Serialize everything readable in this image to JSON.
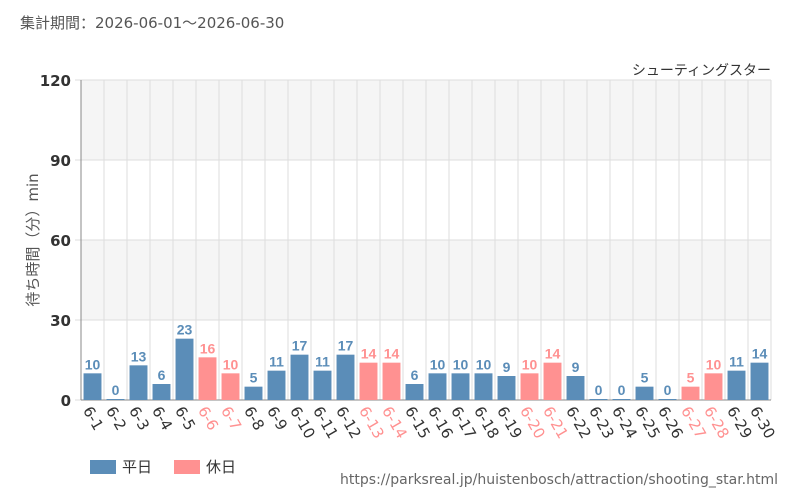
{
  "header": {
    "period": "集計期間：2026-06-01～2026-06-30"
  },
  "source_url": "https://parksreal.jp/huistenbosch/attraction/shooting_star.html",
  "colors": {
    "weekday": "#5b8db8",
    "holiday": "#ff9191",
    "band": "#f5f5f5",
    "grid": "#dddddd",
    "axis_text": "#333333"
  },
  "chart_data": {
    "type": "bar",
    "title": "シューティングスター",
    "ylabel": "待ち時間（分）min",
    "xlabel": "",
    "ylim": [
      0,
      120
    ],
    "yticks": [
      0,
      30,
      60,
      90,
      120
    ],
    "categories": [
      "6-1",
      "6-2",
      "6-3",
      "6-4",
      "6-5",
      "6-6",
      "6-7",
      "6-8",
      "6-9",
      "6-10",
      "6-11",
      "6-12",
      "6-13",
      "6-14",
      "6-15",
      "6-16",
      "6-17",
      "6-18",
      "6-19",
      "6-20",
      "6-21",
      "6-22",
      "6-23",
      "6-24",
      "6-25",
      "6-26",
      "6-27",
      "6-28",
      "6-29",
      "6-30"
    ],
    "values": [
      10,
      0,
      13,
      6,
      23,
      16,
      10,
      5,
      11,
      17,
      11,
      17,
      14,
      14,
      6,
      10,
      10,
      10,
      9,
      10,
      14,
      9,
      0,
      0,
      5,
      0,
      5,
      10,
      11,
      14
    ],
    "day_type": [
      "weekday",
      "weekday",
      "weekday",
      "weekday",
      "weekday",
      "holiday",
      "holiday",
      "weekday",
      "weekday",
      "weekday",
      "weekday",
      "weekday",
      "holiday",
      "holiday",
      "weekday",
      "weekday",
      "weekday",
      "weekday",
      "weekday",
      "holiday",
      "holiday",
      "weekday",
      "weekday",
      "weekday",
      "weekday",
      "weekday",
      "holiday",
      "holiday",
      "weekday",
      "weekday"
    ],
    "legend": [
      {
        "key": "weekday",
        "label": "平日"
      },
      {
        "key": "holiday",
        "label": "休日"
      }
    ],
    "legend_position": "bottom-left",
    "grid": true
  }
}
